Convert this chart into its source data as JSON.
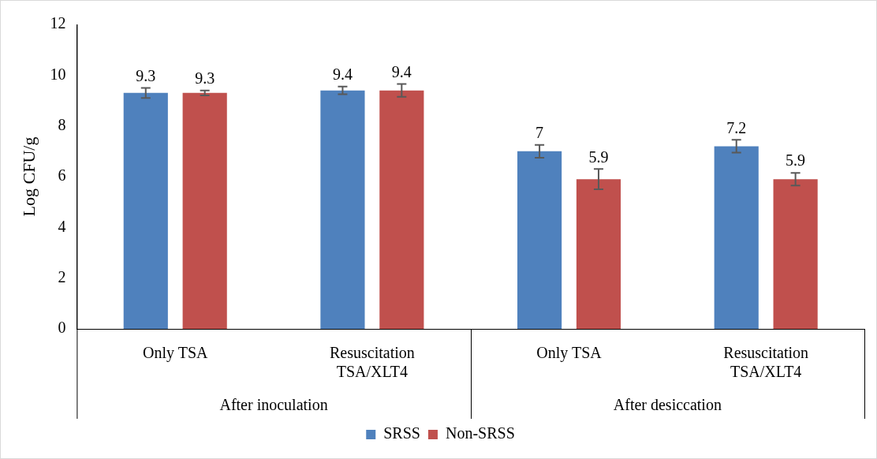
{
  "chart_data": {
    "type": "bar",
    "ylabel": "Log CFU/g",
    "categories": [
      "Only TSA",
      "Resuscitation TSA/XLT4",
      "Only TSA",
      "Resuscitation TSA/XLT4"
    ],
    "series": [
      {
        "name": "SRSS",
        "color": "#4f81bd",
        "values": [
          9.3,
          9.4,
          7,
          7.2
        ],
        "errors": [
          0.2,
          0.15,
          0.25,
          0.25
        ]
      },
      {
        "name": "Non-SRSS",
        "color": "#c0504d",
        "values": [
          9.3,
          9.4,
          5.9,
          5.9
        ],
        "errors": [
          0.1,
          0.25,
          0.4,
          0.25
        ]
      }
    ],
    "ylim": [
      0,
      12
    ],
    "yticks": [
      0,
      2,
      4,
      6,
      8,
      10,
      12
    ],
    "grid": false,
    "legend": "bottom",
    "data_labels": true,
    "annotations": [
      "After inoculation",
      "After desiccation"
    ]
  }
}
